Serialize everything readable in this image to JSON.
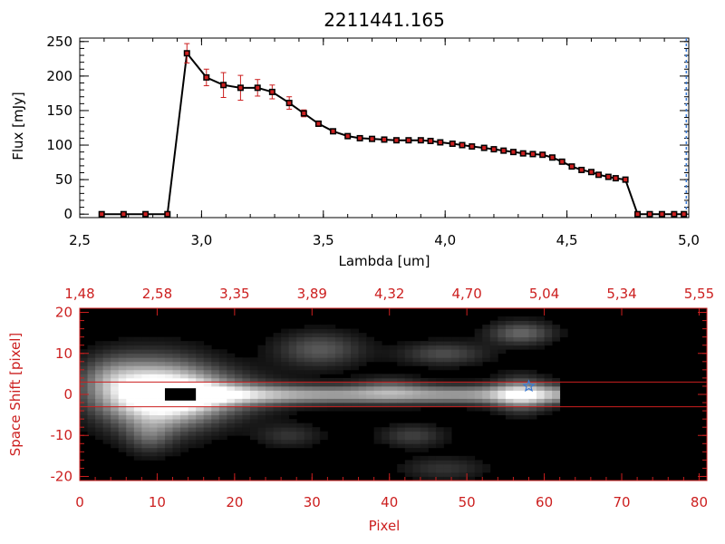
{
  "chart_data": [
    {
      "type": "line",
      "title": "2211441.165",
      "xlabel": "Lambda [um]",
      "ylabel": "Flux [mJy]",
      "xlim": [
        2.5,
        5.0
      ],
      "ylim": [
        -5,
        255
      ],
      "x_ticks": [
        "2.5",
        "3.0",
        "3.5",
        "4.0",
        "4.5",
        "5.0"
      ],
      "y_ticks": [
        "0",
        "50",
        "100",
        "150",
        "200",
        "250"
      ],
      "colors": {
        "line": "#000000",
        "marker": "#cc1f1f",
        "errorbar": "#cc1f1f",
        "limit_line": "#3a7bd5"
      },
      "limit_x": 4.99,
      "series": [
        {
          "x": [
            2.59,
            2.68,
            2.77,
            2.86,
            2.94,
            3.02,
            3.09,
            3.16,
            3.23,
            3.29,
            3.36,
            3.42,
            3.48,
            3.54,
            3.6,
            3.65,
            3.7,
            3.75,
            3.8,
            3.85,
            3.9,
            3.94,
            3.98,
            4.03,
            4.07,
            4.11,
            4.16,
            4.2,
            4.24,
            4.28,
            4.32,
            4.36,
            4.4,
            4.44,
            4.48,
            4.52,
            4.56,
            4.6,
            4.63,
            4.67,
            4.7,
            4.74,
            4.79,
            4.84,
            4.89,
            4.94,
            4.98
          ],
          "y": [
            0,
            0,
            0,
            0,
            233,
            198,
            187,
            183,
            183,
            177,
            161,
            146,
            131,
            120,
            113,
            110,
            109,
            108,
            107,
            107,
            107,
            106,
            104,
            102,
            100,
            98,
            96,
            94,
            92,
            90,
            88,
            87,
            86,
            82,
            76,
            69,
            64,
            61,
            57,
            54,
            52,
            50,
            0,
            0,
            0,
            0,
            0
          ],
          "yerr": [
            0,
            0,
            0,
            0,
            14,
            12,
            18,
            18,
            12,
            10,
            9,
            5,
            4,
            3,
            3,
            3,
            3,
            3,
            3,
            3,
            3,
            3,
            3,
            3,
            3,
            3,
            3,
            3,
            3,
            3,
            3,
            3,
            3,
            3,
            3,
            3,
            3,
            3,
            3,
            3,
            3,
            3,
            0,
            0,
            0,
            0,
            0
          ]
        }
      ]
    },
    {
      "type": "heatmap",
      "xlabel": "Pixel",
      "ylabel": "Space Shift [pixel]",
      "xlim": [
        0,
        81
      ],
      "ylim": [
        -21,
        21
      ],
      "x_ticks": [
        "0",
        "10",
        "20",
        "30",
        "40",
        "50",
        "60",
        "70",
        "80"
      ],
      "y_ticks": [
        "-20",
        "-10",
        "0",
        "10",
        "20"
      ],
      "top_ticks": [
        "1.48",
        "2.58",
        "3.35",
        "3.89",
        "4.32",
        "4.70",
        "5.04",
        "5.34",
        "5.55"
      ],
      "aperture_lines_y": [
        3,
        -3
      ],
      "source_marker": {
        "x": 58,
        "y": 2
      },
      "colors": {
        "axes": "#cc1f1f",
        "background": "#000000",
        "aperture": "#cc1f1f",
        "marker": "#3a7bd5"
      },
      "blobs": [
        {
          "x": 10,
          "y": 0,
          "sx": 5,
          "sy": 6,
          "a": 0.9
        },
        {
          "x": 14,
          "y": 0,
          "sx": 7,
          "sy": 4,
          "a": 0.55
        },
        {
          "x": 4,
          "y": 4,
          "sx": 3,
          "sy": 4,
          "a": 0.3
        },
        {
          "x": 9,
          "y": -10,
          "sx": 2,
          "sy": 3,
          "a": 0.25
        },
        {
          "x": 31,
          "y": 11,
          "sx": 4,
          "sy": 3,
          "a": 0.35
        },
        {
          "x": 47,
          "y": 10,
          "sx": 4,
          "sy": 2,
          "a": 0.3
        },
        {
          "x": 57,
          "y": 15,
          "sx": 3,
          "sy": 2,
          "a": 0.4
        },
        {
          "x": 57,
          "y": 0,
          "sx": 2.5,
          "sy": 3,
          "a": 0.5
        },
        {
          "x": 27,
          "y": -10,
          "sx": 3,
          "sy": 2,
          "a": 0.2
        },
        {
          "x": 43,
          "y": -10,
          "sx": 3,
          "sy": 2,
          "a": 0.25
        },
        {
          "x": 47,
          "y": -18,
          "sx": 4,
          "sy": 2,
          "a": 0.2
        },
        {
          "x": 40,
          "y": 2,
          "sx": 3,
          "sy": 2,
          "a": 0.2
        }
      ],
      "trace": {
        "x0": 8,
        "x1": 62,
        "sy": 1.6,
        "a": 0.62
      }
    }
  ]
}
